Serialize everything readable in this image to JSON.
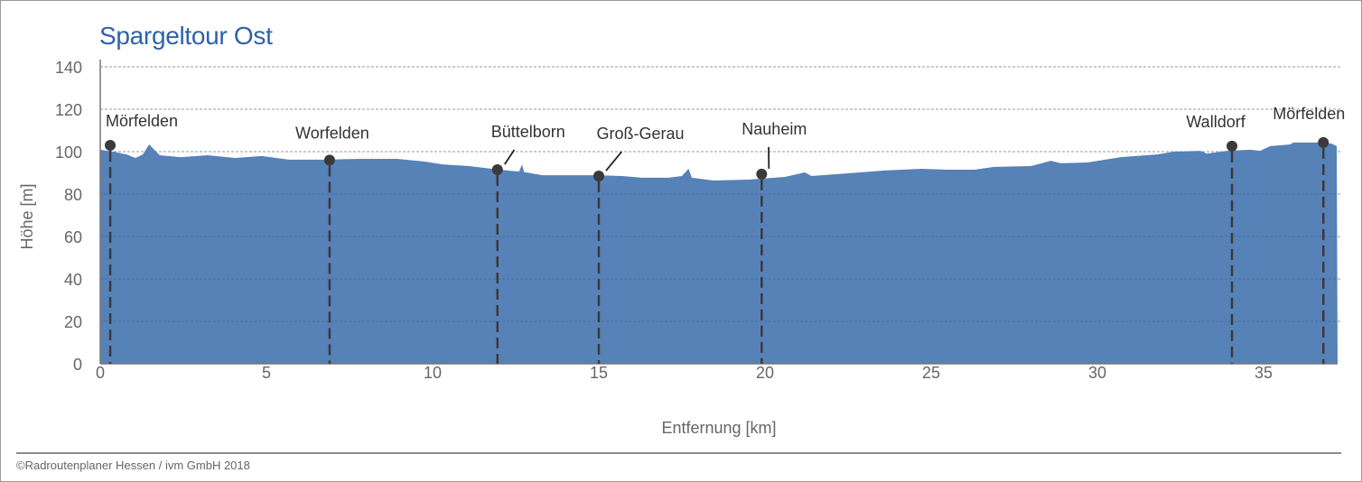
{
  "title": "Spargeltour Ost",
  "copyright": "©Radroutenplaner Hessen / ivm GmbH 2018",
  "chart_data": {
    "type": "area",
    "title": "Spargeltour Ost",
    "xlabel": "Entfernung [km]",
    "ylabel": "Höhe [m]",
    "xlim": [
      0,
      37.2
    ],
    "ylim": [
      0,
      140
    ],
    "xticks": [
      0,
      5,
      10,
      15,
      20,
      25,
      30,
      35
    ],
    "yticks": [
      0,
      20,
      40,
      60,
      80,
      100,
      120,
      140
    ],
    "grid": true,
    "fill_color": "#5682b8",
    "title_color": "#2e62a8",
    "profile": [
      [
        0,
        100.9
      ],
      [
        0.38,
        100
      ],
      [
        0.79,
        98.7
      ],
      [
        1.06,
        97
      ],
      [
        1.28,
        98.7
      ],
      [
        1.47,
        103.4
      ],
      [
        1.79,
        98.3
      ],
      [
        2.42,
        97.4
      ],
      [
        3.23,
        98.3
      ],
      [
        4.05,
        97
      ],
      [
        4.86,
        97.9
      ],
      [
        5.68,
        96.2
      ],
      [
        6.77,
        96.2
      ],
      [
        7.85,
        96.6
      ],
      [
        8.94,
        96.6
      ],
      [
        9.76,
        95.3
      ],
      [
        10.3,
        94
      ],
      [
        11.1,
        93.2
      ],
      [
        12.0,
        91.5
      ],
      [
        12.6,
        90.6
      ],
      [
        12.69,
        94
      ],
      [
        12.75,
        90.4
      ],
      [
        13.3,
        88.9
      ],
      [
        14.9,
        88.9
      ],
      [
        15.7,
        88.5
      ],
      [
        16.3,
        87.7
      ],
      [
        17.1,
        87.7
      ],
      [
        17.5,
        88.5
      ],
      [
        17.7,
        91.9
      ],
      [
        17.8,
        87.7
      ],
      [
        18.45,
        86.4
      ],
      [
        19.5,
        86.8
      ],
      [
        20.6,
        88.1
      ],
      [
        21.2,
        90.2
      ],
      [
        21.4,
        88.5
      ],
      [
        22.5,
        89.8
      ],
      [
        23.6,
        91.1
      ],
      [
        24.7,
        91.9
      ],
      [
        25.5,
        91.5
      ],
      [
        26.3,
        91.5
      ],
      [
        26.9,
        92.8
      ],
      [
        28.0,
        93.2
      ],
      [
        28.6,
        95.7
      ],
      [
        28.9,
        94.5
      ],
      [
        29.7,
        94.9
      ],
      [
        30.7,
        97.4
      ],
      [
        31.8,
        98.7
      ],
      [
        32.3,
        100
      ],
      [
        33.1,
        100.4
      ],
      [
        33.3,
        99.1
      ],
      [
        33.9,
        100.4
      ],
      [
        34.6,
        100.9
      ],
      [
        34.9,
        100.4
      ],
      [
        35.2,
        102.6
      ],
      [
        35.8,
        103.4
      ],
      [
        35.9,
        104.3
      ],
      [
        36.8,
        104.3
      ],
      [
        37.05,
        103.8
      ],
      [
        37.2,
        102.6
      ]
    ],
    "places": [
      {
        "name": "Mörfelden",
        "km": 0.3,
        "elev": 103
      },
      {
        "name": "Worfelden",
        "km": 6.9,
        "elev": 96
      },
      {
        "name": "Büttelborn",
        "km": 11.95,
        "elev": 91.5
      },
      {
        "name": "Groß-Gerau",
        "km": 15.0,
        "elev": 88.5
      },
      {
        "name": "Nauheim",
        "km": 19.9,
        "elev": 89.4
      },
      {
        "name": "Walldorf",
        "km": 34.05,
        "elev": 102.6
      },
      {
        "name": "Mörfelden",
        "km": 36.8,
        "elev": 104.3
      }
    ]
  }
}
